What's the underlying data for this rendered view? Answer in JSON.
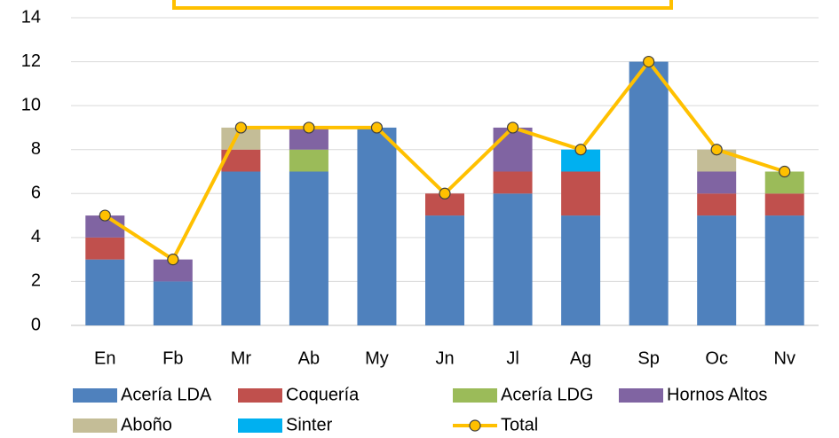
{
  "chart_data": {
    "type": "stacked_bar_line",
    "categories": [
      "En",
      "Fb",
      "Mr",
      "Ab",
      "My",
      "Jn",
      "Jl",
      "Ag",
      "Sp",
      "Oc",
      "Nv"
    ],
    "series": [
      {
        "name": "Acería LDA",
        "color": "#4f81bd",
        "values": [
          3,
          2,
          7,
          7,
          9,
          5,
          6,
          5,
          12,
          5,
          5
        ]
      },
      {
        "name": "Coquería",
        "color": "#c0504d",
        "values": [
          1,
          0,
          1,
          0,
          0,
          1,
          1,
          2,
          0,
          1,
          1
        ]
      },
      {
        "name": "Acería LDG",
        "color": "#9bbb59",
        "values": [
          0,
          0,
          0,
          1,
          0,
          0,
          0,
          0,
          0,
          0,
          1
        ]
      },
      {
        "name": "Hornos Altos",
        "color": "#8064a2",
        "values": [
          1,
          1,
          0,
          1,
          0,
          0,
          2,
          0,
          0,
          1,
          0
        ]
      },
      {
        "name": "Aboño",
        "color": "#c4bd97",
        "values": [
          0,
          0,
          1,
          0,
          0,
          0,
          0,
          0,
          0,
          1,
          0
        ]
      },
      {
        "name": "Sinter",
        "color": "#00b0f0",
        "values": [
          0,
          0,
          0,
          0,
          0,
          0,
          0,
          1,
          0,
          0,
          0
        ]
      }
    ],
    "line": {
      "name": "Total",
      "color": "#ffc000",
      "values": [
        5,
        3,
        9,
        9,
        9,
        6,
        9,
        8,
        12,
        8,
        7
      ]
    },
    "ylim": [
      0,
      14
    ],
    "yticks": [
      0,
      2,
      4,
      6,
      8,
      10,
      12,
      14
    ],
    "grid": true,
    "legend": "bottom"
  }
}
